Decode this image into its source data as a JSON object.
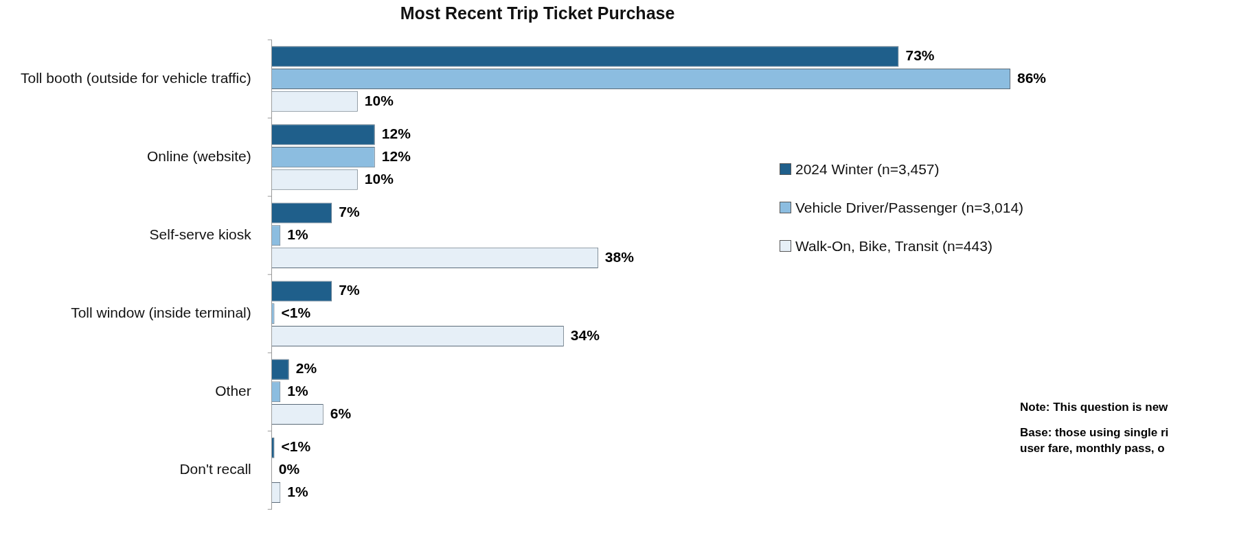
{
  "chart_data": {
    "type": "bar",
    "orientation": "horizontal",
    "title": "Most Recent Trip Ticket Purchase",
    "categories": [
      "Toll booth (outside for vehicle traffic)",
      "Online (website)",
      "Self-serve kiosk",
      "Toll window (inside terminal)",
      "Other",
      "Don't recall"
    ],
    "series": [
      {
        "name": "2024 Winter (n=3,457)",
        "color": "#1f5f8b",
        "values": [
          73,
          12,
          7,
          7,
          2,
          0.3
        ],
        "value_labels": [
          "73%",
          "12%",
          "7%",
          "7%",
          "2%",
          "<1%"
        ]
      },
      {
        "name": "Vehicle Driver/Passenger (n=3,014)",
        "color": "#8cbde0",
        "values": [
          86,
          12,
          1,
          0.3,
          1,
          0
        ],
        "value_labels": [
          "86%",
          "12%",
          "1%",
          "<1%",
          "1%",
          "0%"
        ]
      },
      {
        "name": "Walk-On, Bike, Transit (n=443)",
        "color": "#e6eff7",
        "values": [
          10,
          10,
          38,
          34,
          6,
          1
        ],
        "value_labels": [
          "10%",
          "10%",
          "38%",
          "34%",
          "6%",
          "1%"
        ]
      }
    ],
    "legend": "right",
    "annotations": [
      "Note: This question is new",
      "Base: those using single ri\nuser fare, monthly pass, o"
    ]
  }
}
